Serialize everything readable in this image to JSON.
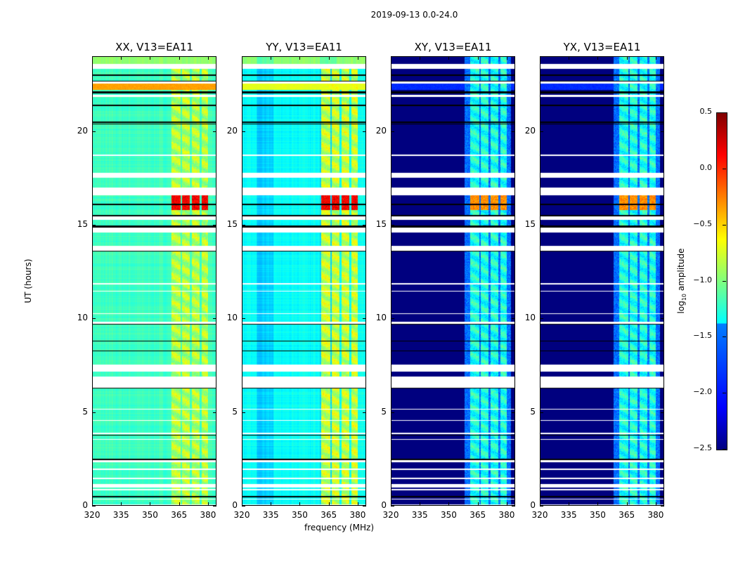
{
  "chart_data": {
    "type": "heatmap",
    "suptitle": "2019-09-13 0.0-24.0",
    "xlabel": "frequency (MHz)",
    "ylabel": "UT (hours)",
    "xlim": [
      320,
      384.4
    ],
    "ylim": [
      0,
      24
    ],
    "xticks": [
      "320",
      "335",
      "350",
      "365",
      "380"
    ],
    "xtick_values": [
      320,
      335,
      350,
      365,
      380
    ],
    "yticks": [
      "0",
      "5",
      "10",
      "15",
      "20"
    ],
    "ytick_values": [
      0,
      5,
      10,
      15,
      20
    ],
    "colormap": "jet",
    "colorbar": {
      "label": "log10 amplitude",
      "label_main": "log",
      "label_sub": "10",
      "label_rest": " amplitude",
      "range": [
        -2.5,
        0.5
      ],
      "ticks": [
        "0.5",
        "0.0",
        "−0.5",
        "−1.0",
        "−1.5",
        "−2.0",
        "−2.5"
      ],
      "tick_values": [
        0.5,
        0.0,
        -0.5,
        -1.0,
        -1.5,
        -2.0,
        -2.5
      ]
    },
    "panels": [
      {
        "title": "XX, V13=EA11",
        "base": -1.2,
        "band_level": -0.85,
        "hot_level": 0.15,
        "top_level": -0.35,
        "cross": false
      },
      {
        "title": "YY, V13=EA11",
        "base": -1.35,
        "band_level": -0.8,
        "hot_level": 0.15,
        "top_level": -0.7,
        "cross": false
      },
      {
        "title": "XY, V13=EA11",
        "base": -2.5,
        "band_level": -1.3,
        "hot_level": -0.3,
        "top_level": -2.0,
        "cross": true
      },
      {
        "title": "YX, V13=EA11",
        "base": -2.5,
        "band_level": -1.3,
        "hot_level": -0.3,
        "top_level": -2.0,
        "cross": true
      }
    ],
    "rfi_bands_mhz": [
      [
        361,
        365.5
      ],
      [
        366.5,
        370.5
      ],
      [
        371.5,
        375.5
      ],
      [
        376.5,
        380
      ]
    ],
    "hot_period_ut": [
      15.8,
      16.8
    ],
    "flagged_ut": [
      [
        23.35,
        23.6
      ],
      [
        22.55,
        22.7
      ],
      [
        21.85,
        21.95
      ],
      [
        18.7,
        18.75
      ],
      [
        17.55,
        17.8
      ],
      [
        16.6,
        17.0
      ],
      [
        15.3,
        15.5
      ],
      [
        14.6,
        14.9
      ],
      [
        13.6,
        13.9
      ],
      [
        11.85,
        11.9
      ],
      [
        11.45,
        11.5
      ],
      [
        10.25,
        10.3
      ],
      [
        9.75,
        9.85
      ],
      [
        7.2,
        7.55
      ],
      [
        6.3,
        6.9
      ],
      [
        5.15,
        5.2
      ],
      [
        4.55,
        4.6
      ],
      [
        3.85,
        3.9
      ],
      [
        3.55,
        3.6
      ],
      [
        2.35,
        2.45
      ],
      [
        1.95,
        2.0
      ],
      [
        1.45,
        1.5
      ],
      [
        1.0,
        1.2
      ],
      [
        0.85,
        0.9
      ],
      [
        0.35,
        0.4
      ],
      [
        0.05,
        0.1
      ]
    ],
    "bad_ut": [
      23.0,
      22.7,
      22.1,
      22.05,
      21.4,
      20.5,
      20.4,
      16.1,
      15.5,
      14.95,
      14.9,
      13.6,
      9.7,
      8.8,
      8.3,
      6.3,
      3.8,
      2.5,
      0.5
    ]
  }
}
